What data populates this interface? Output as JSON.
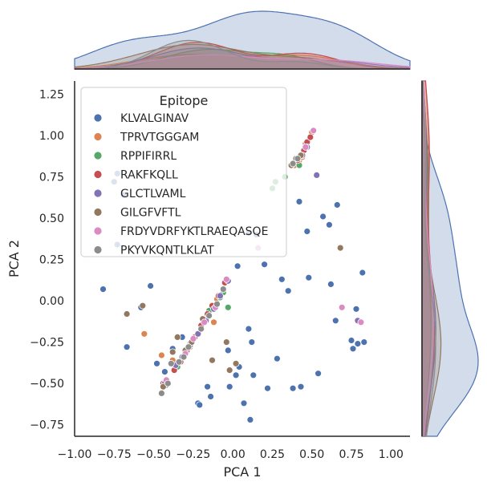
{
  "chart_data": {
    "type": "scatter",
    "title": "",
    "xlabel": "PCA 1",
    "ylabel": "PCA 2",
    "xlim": [
      -1.0,
      1.12
    ],
    "ylim": [
      -0.82,
      1.33
    ],
    "xticks": [
      "−1.00",
      "−0.75",
      "−0.50",
      "−0.25",
      "0.00",
      "0.25",
      "0.50",
      "0.75",
      "1.00"
    ],
    "xtick_values": [
      -1.0,
      -0.75,
      -0.5,
      -0.25,
      0.0,
      0.25,
      0.5,
      0.75,
      1.0
    ],
    "yticks": [
      "−0.75",
      "−0.50",
      "−0.25",
      "0.00",
      "0.25",
      "0.50",
      "0.75",
      "1.00",
      "1.25"
    ],
    "ytick_values": [
      -0.75,
      -0.5,
      -0.25,
      0.0,
      0.25,
      0.5,
      0.75,
      1.0,
      1.25
    ],
    "grid": false,
    "legend": {
      "title": "Epitope",
      "position": "top-left"
    },
    "marginals": {
      "top": "kde",
      "right": "kde"
    },
    "series": [
      {
        "name": "KLVALGINAV",
        "color": "#4c72b0",
        "points": [
          [
            -0.82,
            0.07
          ],
          [
            -0.73,
            0.77
          ],
          [
            -0.75,
            0.72
          ],
          [
            -0.69,
            0.64
          ],
          [
            -0.73,
            0.34
          ],
          [
            -0.67,
            -0.28
          ],
          [
            -0.52,
            0.09
          ],
          [
            -0.58,
            -0.04
          ],
          [
            -0.48,
            -0.38
          ],
          [
            -0.43,
            -0.43
          ],
          [
            -0.38,
            -0.29
          ],
          [
            -0.32,
            -0.22
          ],
          [
            -0.22,
            -0.62
          ],
          [
            -0.21,
            -0.63
          ],
          [
            -0.16,
            -0.52
          ],
          [
            -0.14,
            -0.58
          ],
          [
            -0.03,
            -0.3
          ],
          [
            -0.02,
            -0.52
          ],
          [
            0.03,
            0.21
          ],
          [
            0.02,
            -0.45
          ],
          [
            0.04,
            -0.4
          ],
          [
            0.07,
            -0.62
          ],
          [
            0.1,
            0.41
          ],
          [
            0.1,
            -0.17
          ],
          [
            0.11,
            -0.72
          ],
          [
            0.12,
            -0.25
          ],
          [
            0.13,
            -0.45
          ],
          [
            0.15,
            0.4
          ],
          [
            0.2,
            0.22
          ],
          [
            0.22,
            -0.53
          ],
          [
            0.28,
            -0.35
          ],
          [
            0.31,
            0.13
          ],
          [
            0.35,
            0.06
          ],
          [
            0.38,
            -0.53
          ],
          [
            0.42,
            0.6
          ],
          [
            0.43,
            -0.52
          ],
          [
            0.47,
            0.42
          ],
          [
            0.48,
            0.14
          ],
          [
            0.54,
            -0.44
          ],
          [
            0.57,
            0.51
          ],
          [
            0.61,
            0.46
          ],
          [
            0.62,
            0.1
          ],
          [
            0.66,
            0.58
          ],
          [
            0.65,
            -0.12
          ],
          [
            0.75,
            -0.24
          ],
          [
            0.76,
            -0.29
          ],
          [
            0.78,
            -0.05
          ],
          [
            0.79,
            -0.26
          ],
          [
            0.82,
            0.17
          ],
          [
            0.83,
            -0.25
          ]
        ]
      },
      {
        "name": "TPRVTGGGAM",
        "color": "#dd8452",
        "points": [
          [
            -0.56,
            -0.2
          ],
          [
            -0.45,
            -0.33
          ],
          [
            -0.38,
            -0.36
          ],
          [
            -0.27,
            -0.28
          ],
          [
            -0.12,
            -0.13
          ],
          [
            -0.1,
            0.01
          ],
          [
            -0.04,
            0.12
          ],
          [
            0.39,
            0.82
          ],
          [
            0.42,
            0.85
          ],
          [
            0.44,
            0.87
          ],
          [
            0.46,
            0.95
          ],
          [
            0.5,
            1.02
          ]
        ]
      },
      {
        "name": "RPPIFIRRL",
        "color": "#55a868",
        "points": [
          [
            -0.42,
            -0.51
          ],
          [
            -0.35,
            -0.4
          ],
          [
            -0.27,
            -0.26
          ],
          [
            -0.15,
            -0.06
          ],
          [
            -0.08,
            0.02
          ],
          [
            -0.06,
            0.05
          ],
          [
            -0.03,
            -0.04
          ],
          [
            0.25,
            0.68
          ],
          [
            0.27,
            0.72
          ],
          [
            0.33,
            0.75
          ],
          [
            0.42,
            0.82
          ]
        ]
      },
      {
        "name": "RAKFKQLL",
        "color": "#c44e52",
        "points": [
          [
            -0.44,
            -0.5
          ],
          [
            -0.37,
            -0.42
          ],
          [
            -0.33,
            -0.37
          ],
          [
            -0.29,
            -0.3
          ],
          [
            -0.24,
            -0.22
          ],
          [
            -0.2,
            -0.15
          ],
          [
            -0.16,
            -0.08
          ],
          [
            -0.13,
            -0.03
          ],
          [
            -0.09,
            0.03
          ],
          [
            -0.05,
            0.11
          ],
          [
            0.41,
            0.85
          ],
          [
            0.43,
            0.88
          ],
          [
            0.45,
            0.91
          ],
          [
            0.47,
            0.96
          ],
          [
            0.49,
            0.99
          ]
        ]
      },
      {
        "name": "GLCTLVAML",
        "color": "#8172b3",
        "points": [
          [
            -0.43,
            -0.5
          ],
          [
            -0.36,
            -0.39
          ],
          [
            -0.32,
            -0.34
          ],
          [
            -0.27,
            -0.27
          ],
          [
            -0.22,
            -0.2
          ],
          [
            -0.17,
            -0.12
          ],
          [
            -0.12,
            -0.05
          ],
          [
            -0.08,
            0.03
          ],
          [
            -0.03,
            0.12
          ],
          [
            0.44,
            0.88
          ],
          [
            0.47,
            0.93
          ],
          [
            0.53,
            0.76
          ],
          [
            0.79,
            -0.12
          ]
        ]
      },
      {
        "name": "GILGFVFTL",
        "color": "#937860",
        "points": [
          [
            -0.67,
            -0.08
          ],
          [
            -0.57,
            -0.03
          ],
          [
            -0.44,
            -0.52
          ],
          [
            -0.38,
            -0.31
          ],
          [
            -0.35,
            -0.22
          ],
          [
            -0.3,
            -0.3
          ],
          [
            -0.26,
            -0.25
          ],
          [
            -0.19,
            -0.11
          ],
          [
            -0.13,
            -0.36
          ],
          [
            -0.04,
            -0.25
          ],
          [
            -0.02,
            -0.42
          ],
          [
            0.02,
            -0.38
          ],
          [
            0.37,
            0.82
          ],
          [
            0.4,
            0.86
          ],
          [
            0.43,
            0.88
          ],
          [
            0.68,
            0.32
          ]
        ]
      },
      {
        "name": "FRDYVDRFYKTLRAEQASQE",
        "color": "#da8bc3",
        "points": [
          [
            -0.42,
            -0.48
          ],
          [
            -0.3,
            -0.32
          ],
          [
            -0.25,
            -0.23
          ],
          [
            -0.18,
            -0.13
          ],
          [
            -0.11,
            -0.04
          ],
          [
            -0.04,
            0.13
          ],
          [
            0.16,
            0.32
          ],
          [
            0.46,
            0.93
          ],
          [
            0.51,
            1.03
          ],
          [
            0.69,
            -0.04
          ],
          [
            0.81,
            -0.13
          ]
        ]
      },
      {
        "name": "PKYVKQNTLKLAT",
        "color": "#8c8c8c",
        "points": [
          [
            -0.45,
            -0.56
          ],
          [
            -0.41,
            -0.5
          ],
          [
            -0.39,
            -0.38
          ],
          [
            -0.34,
            -0.37
          ],
          [
            -0.31,
            -0.34
          ],
          [
            -0.28,
            -0.28
          ],
          [
            -0.2,
            -0.17
          ],
          [
            -0.15,
            -0.09
          ],
          [
            -0.1,
            -0.02
          ],
          [
            -0.06,
            0.07
          ],
          [
            0.38,
            0.83
          ],
          [
            0.41,
            0.86
          ]
        ]
      }
    ]
  }
}
